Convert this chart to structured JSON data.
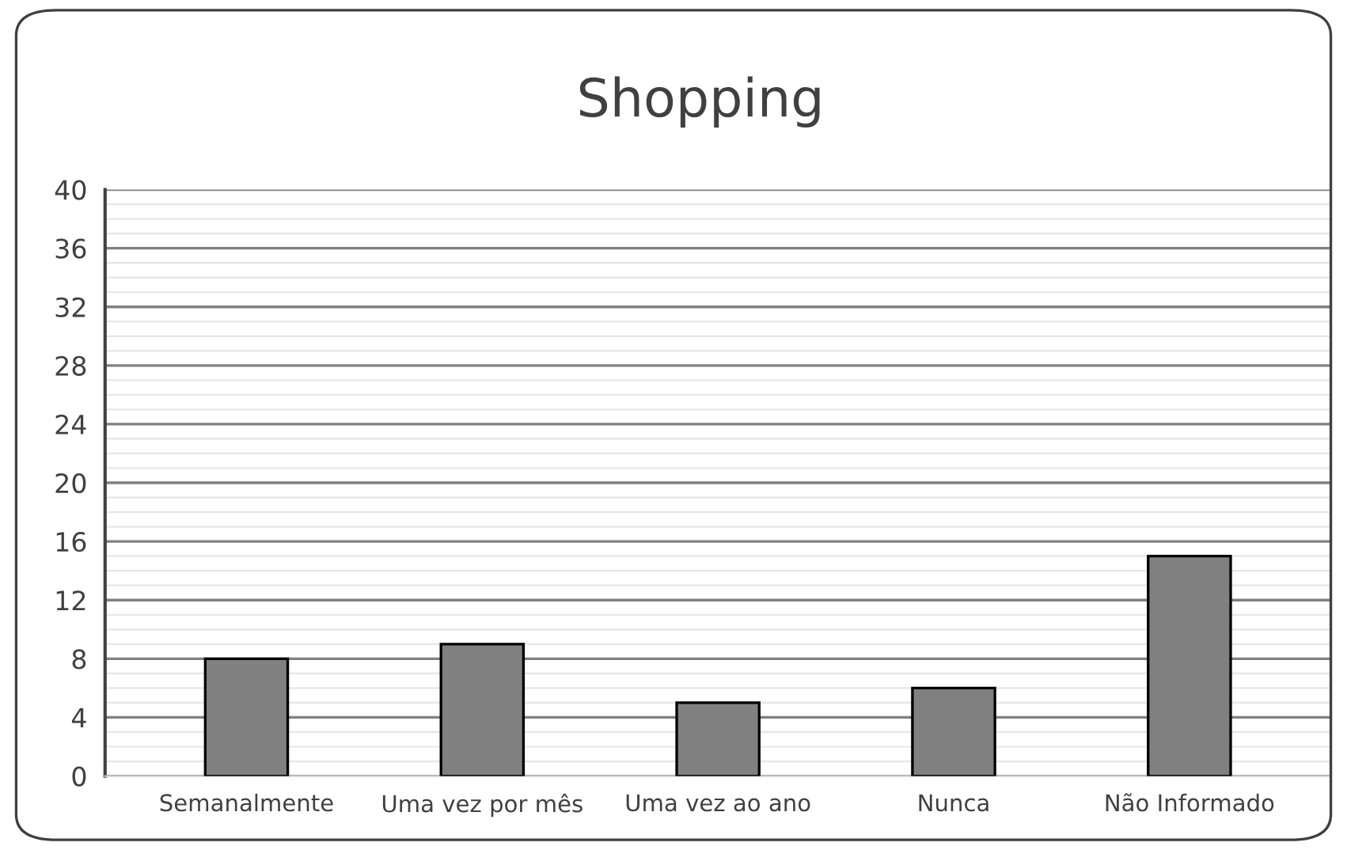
{
  "chart_data": {
    "type": "bar",
    "title": "Shopping",
    "categories": [
      "Semanalmente",
      "Uma vez por mês",
      "Uma vez ao ano",
      "Nunca",
      "Não Informado"
    ],
    "values": [
      8,
      9,
      5,
      6,
      15
    ],
    "color": "#808080",
    "ylim": [
      0,
      40
    ],
    "yticks": [
      0,
      4,
      8,
      12,
      16,
      20,
      24,
      28,
      32,
      36,
      40
    ],
    "grid": "y"
  }
}
